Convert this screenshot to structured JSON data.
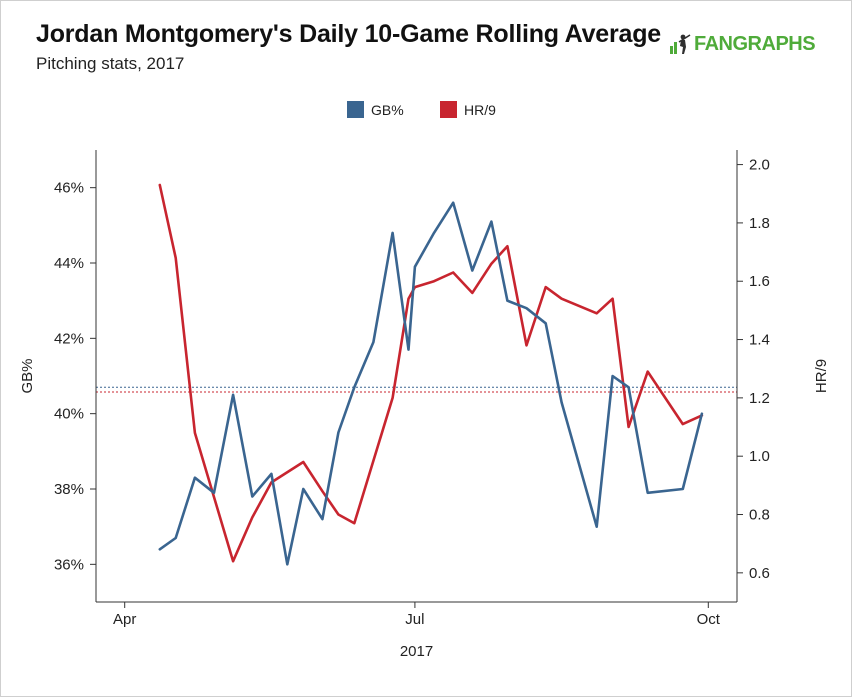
{
  "header": {
    "title": "Jordan Montgomery's Daily 10-Game Rolling Average",
    "subtitle": "Pitching stats, 2017"
  },
  "brand": {
    "name": "FANGRAPHS",
    "icon": "batter-icon",
    "color": "#4fab3a"
  },
  "chart_data": {
    "type": "line",
    "title": "Jordan Montgomery's Daily 10-Game Rolling Average",
    "subtitle": "Pitching stats, 2017",
    "xlabel": "2017",
    "ylabel_left": "GB%",
    "ylabel_right": "HR/9",
    "x_ticks": [
      "Apr",
      "Jul",
      "Oct"
    ],
    "x_tick_dates": [
      "2017-04-01",
      "2017-07-01",
      "2017-10-01"
    ],
    "xlim": [
      "2017-03-23",
      "2017-10-10"
    ],
    "y_left": {
      "lim": [
        35.0,
        47.0
      ],
      "ticks": [
        36,
        38,
        40,
        42,
        44,
        46
      ],
      "tick_labels": [
        "36%",
        "38%",
        "40%",
        "42%",
        "44%",
        "46%"
      ]
    },
    "y_right": {
      "lim": [
        0.5,
        2.05
      ],
      "ticks": [
        0.6,
        0.8,
        1.0,
        1.2,
        1.4,
        1.6,
        1.8,
        2.0
      ],
      "tick_labels": [
        "0.6",
        "0.8",
        "1.0",
        "1.2",
        "1.4",
        "1.6",
        "1.8",
        "2.0"
      ]
    },
    "legend": {
      "position": "top-center"
    },
    "series": [
      {
        "name": "GB%",
        "axis": "left",
        "color": "#3a6590",
        "dates": [
          "2017-04-12",
          "2017-04-17",
          "2017-04-23",
          "2017-04-29",
          "2017-05-05",
          "2017-05-11",
          "2017-05-17",
          "2017-05-22",
          "2017-05-27",
          "2017-06-02",
          "2017-06-07",
          "2017-06-12",
          "2017-06-18",
          "2017-06-24",
          "2017-06-29",
          "2017-07-01",
          "2017-07-07",
          "2017-07-13",
          "2017-07-19",
          "2017-07-25",
          "2017-07-30",
          "2017-08-05",
          "2017-08-11",
          "2017-08-16",
          "2017-08-27",
          "2017-09-01",
          "2017-09-06",
          "2017-09-12",
          "2017-09-23",
          "2017-09-29"
        ],
        "values": [
          36.4,
          36.7,
          38.3,
          37.9,
          40.5,
          37.8,
          38.4,
          36.0,
          38.0,
          37.2,
          39.5,
          40.7,
          41.9,
          44.8,
          41.7,
          43.9,
          44.8,
          45.6,
          43.8,
          45.1,
          43.0,
          42.8,
          42.4,
          40.3,
          37.0,
          41.0,
          40.7,
          37.9,
          38.0,
          40.0
        ]
      },
      {
        "name": "HR/9",
        "axis": "right",
        "color": "#c8252f",
        "dates": [
          "2017-04-12",
          "2017-04-17",
          "2017-04-23",
          "2017-05-05",
          "2017-05-11",
          "2017-05-17",
          "2017-05-27",
          "2017-06-02",
          "2017-06-07",
          "2017-06-12",
          "2017-06-24",
          "2017-06-29",
          "2017-07-01",
          "2017-07-07",
          "2017-07-13",
          "2017-07-19",
          "2017-07-25",
          "2017-07-30",
          "2017-08-05",
          "2017-08-11",
          "2017-08-16",
          "2017-08-27",
          "2017-09-01",
          "2017-09-06",
          "2017-09-12",
          "2017-09-23",
          "2017-09-29"
        ],
        "values": [
          1.93,
          1.68,
          1.08,
          0.64,
          0.79,
          0.91,
          0.98,
          0.88,
          0.8,
          0.77,
          1.2,
          1.54,
          1.58,
          1.6,
          1.63,
          1.56,
          1.66,
          1.72,
          1.38,
          1.58,
          1.54,
          1.49,
          1.54,
          1.1,
          1.29,
          1.11,
          1.14
        ]
      }
    ],
    "reference_lines": [
      {
        "series": "GB%",
        "axis": "left",
        "value": 40.7,
        "color": "#3a6590"
      },
      {
        "series": "HR/9",
        "axis": "right",
        "value": 1.22,
        "color": "#c8252f"
      }
    ]
  }
}
